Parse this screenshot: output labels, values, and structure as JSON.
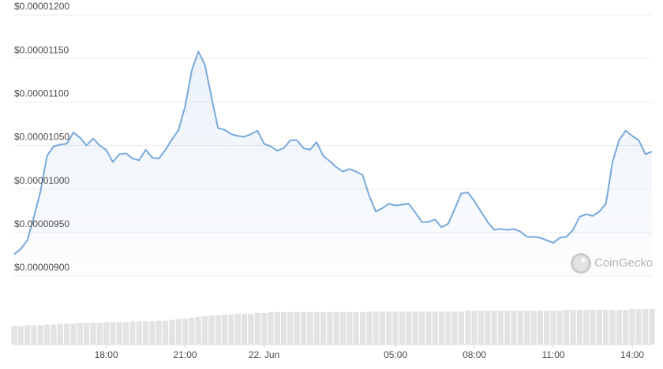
{
  "chart_data": {
    "type": "area",
    "watermark": "CoinGecko",
    "color": "#78a9dc",
    "grid": true,
    "xlim": [
      14.5,
      38.75
    ],
    "xticks": [
      {
        "value": 18,
        "label": "18:00"
      },
      {
        "value": 21,
        "label": "21:00"
      },
      {
        "value": 24,
        "label": "22. Jun"
      },
      {
        "value": 29,
        "label": "05:00"
      },
      {
        "value": 32,
        "label": "08:00"
      },
      {
        "value": 35,
        "label": "11:00"
      },
      {
        "value": 38,
        "label": "14:00"
      }
    ],
    "ylim": [
      9e-06,
      1.2e-05
    ],
    "yticks": [
      {
        "value": 9e-06,
        "label": "$0.00000900"
      },
      {
        "value": 9.5e-06,
        "label": "$0.00000950"
      },
      {
        "value": 1e-05,
        "label": "$0.00001000"
      },
      {
        "value": 1.05e-05,
        "label": "$0.00001050"
      },
      {
        "value": 1.1e-05,
        "label": "$0.00001100"
      },
      {
        "value": 1.15e-05,
        "label": "$0.00001150"
      },
      {
        "value": 1.2e-05,
        "label": "$0.00001200"
      }
    ],
    "x": [
      14.5,
      14.75,
      15,
      15.25,
      15.5,
      15.75,
      16,
      16.25,
      16.5,
      16.75,
      17,
      17.25,
      17.5,
      17.75,
      18,
      18.25,
      18.5,
      18.75,
      19,
      19.25,
      19.5,
      19.75,
      20,
      20.25,
      20.5,
      20.75,
      21,
      21.25,
      21.5,
      21.75,
      22,
      22.25,
      22.5,
      22.75,
      23,
      23.25,
      23.5,
      23.75,
      24,
      24.25,
      24.5,
      24.75,
      25,
      25.25,
      25.5,
      25.75,
      26,
      26.25,
      26.5,
      26.75,
      27,
      27.25,
      27.5,
      27.75,
      28,
      28.25,
      28.5,
      28.75,
      29,
      29.25,
      29.5,
      29.75,
      30,
      30.25,
      30.5,
      30.75,
      31,
      31.25,
      31.5,
      31.75,
      32,
      32.25,
      32.5,
      32.75,
      33,
      33.25,
      33.5,
      33.75,
      34,
      34.25,
      34.5,
      34.75,
      35,
      35.25,
      35.5,
      35.75,
      36,
      36.25,
      36.5,
      36.75,
      37,
      37.25,
      37.5,
      37.75,
      38,
      38.25,
      38.5,
      38.75
    ],
    "values": [
      9.25e-06,
      9.31e-06,
      9.41e-06,
      9.68e-06,
      9.97e-06,
      1.038e-05,
      1.049e-05,
      1.051e-05,
      1.052e-05,
      1.065e-05,
      1.059e-05,
      1.05e-05,
      1.058e-05,
      1.05e-05,
      1.045e-05,
      1.031e-05,
      1.04e-05,
      1.041e-05,
      1.035e-05,
      1.033e-05,
      1.045e-05,
      1.036e-05,
      1.035e-05,
      1.045e-05,
      1.057e-05,
      1.068e-05,
      1.095e-05,
      1.136e-05,
      1.158e-05,
      1.143e-05,
      1.106e-05,
      1.07e-05,
      1.068e-05,
      1.063e-05,
      1.061e-05,
      1.06e-05,
      1.063e-05,
      1.067e-05,
      1.052e-05,
      1.049e-05,
      1.044e-05,
      1.047e-05,
      1.056e-05,
      1.056e-05,
      1.047e-05,
      1.045e-05,
      1.054e-05,
      1.038e-05,
      1.032e-05,
      1.025e-05,
      1.02e-05,
      1.023e-05,
      1.02e-05,
      1.016e-05,
      9.92e-06,
      9.74e-06,
      9.78e-06,
      9.83e-06,
      9.81e-06,
      9.82e-06,
      9.83e-06,
      9.73e-06,
      9.62e-06,
      9.62e-06,
      9.65e-06,
      9.56e-06,
      9.6e-06,
      9.77e-06,
      9.95e-06,
      9.96e-06,
      9.86e-06,
      9.74e-06,
      9.62e-06,
      9.53e-06,
      9.54e-06,
      9.53e-06,
      9.54e-06,
      9.51e-06,
      9.45e-06,
      9.45e-06,
      9.44e-06,
      9.41e-06,
      9.38e-06,
      9.44e-06,
      9.45e-06,
      9.53e-06,
      9.68e-06,
      9.71e-06,
      9.69e-06,
      9.74e-06,
      9.83e-06,
      1.031e-05,
      1.056e-05,
      1.067e-05,
      1.061e-05,
      1.056e-05,
      1.04e-05,
      1.043e-05
    ],
    "volume": [
      24,
      24,
      25,
      25,
      25,
      26,
      26,
      27,
      27,
      27,
      28,
      28,
      28,
      28,
      29,
      29,
      29,
      29,
      30,
      30,
      30,
      30,
      31,
      31,
      32,
      33,
      34,
      35,
      36,
      37,
      38,
      38,
      39,
      39,
      40,
      40,
      40,
      41,
      41,
      42,
      42,
      42,
      42,
      42,
      42,
      42,
      42,
      42,
      42,
      42,
      42,
      42,
      42,
      42,
      43,
      43,
      43,
      43,
      43,
      43,
      43,
      43,
      43,
      43,
      43,
      43,
      43,
      43,
      43,
      44,
      44,
      44,
      44,
      44,
      44,
      44,
      44,
      44,
      44,
      44,
      44,
      44,
      44,
      44,
      45,
      45,
      45,
      45,
      45,
      45,
      45,
      45,
      45,
      45,
      46,
      46,
      46,
      46
    ]
  }
}
